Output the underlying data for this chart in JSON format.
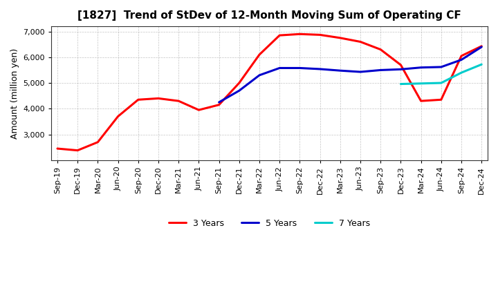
{
  "title": "[1827]  Trend of StDev of 12-Month Moving Sum of Operating CF",
  "ylabel": "Amount (million yen)",
  "ylim": [
    2000,
    7200
  ],
  "yticks": [
    3000,
    4000,
    5000,
    6000,
    7000
  ],
  "background_color": "#ffffff",
  "grid_color": "#aaaaaa",
  "x_labels": [
    "Sep-19",
    "Dec-19",
    "Mar-20",
    "Jun-20",
    "Sep-20",
    "Dec-20",
    "Mar-21",
    "Jun-21",
    "Sep-21",
    "Dec-21",
    "Mar-22",
    "Jun-22",
    "Sep-22",
    "Dec-22",
    "Mar-23",
    "Jun-23",
    "Sep-23",
    "Dec-23",
    "Mar-24",
    "Jun-24",
    "Sep-24",
    "Dec-24"
  ],
  "series": {
    "3 Years": {
      "color": "#ff0000",
      "linewidth": 2.2,
      "values": [
        2450,
        2380,
        2700,
        3700,
        4350,
        4400,
        4300,
        3950,
        4150,
        5000,
        6100,
        6850,
        6900,
        6870,
        6750,
        6600,
        6300,
        5700,
        4300,
        4350,
        6050,
        6430
      ]
    },
    "5 Years": {
      "color": "#0000cc",
      "linewidth": 2.2,
      "values": [
        null,
        null,
        null,
        null,
        null,
        null,
        null,
        null,
        4250,
        4700,
        5300,
        5580,
        5580,
        5540,
        5480,
        5430,
        5500,
        5530,
        5600,
        5620,
        5900,
        6400
      ]
    },
    "7 Years": {
      "color": "#00cccc",
      "linewidth": 2.2,
      "values": [
        null,
        null,
        null,
        null,
        null,
        null,
        null,
        null,
        null,
        null,
        null,
        null,
        null,
        null,
        null,
        null,
        null,
        4960,
        4980,
        5000,
        5400,
        5720
      ]
    },
    "10 Years": {
      "color": "#008000",
      "linewidth": 2.2,
      "values": [
        null,
        null,
        null,
        null,
        null,
        null,
        null,
        null,
        null,
        null,
        null,
        null,
        null,
        null,
        null,
        null,
        null,
        null,
        null,
        null,
        null,
        null
      ]
    }
  }
}
